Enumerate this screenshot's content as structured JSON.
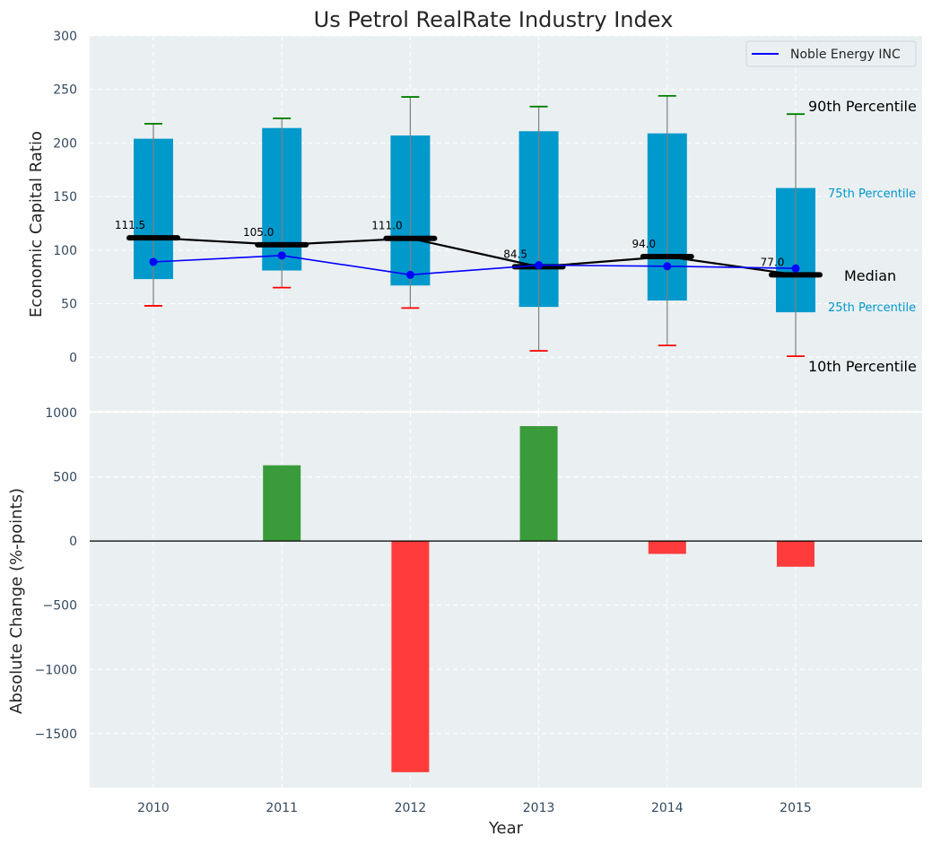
{
  "chart_data": [
    {
      "type": "box",
      "title": "Us Petrol RealRate Industry Index",
      "xlabel": "",
      "ylabel": "Economic Capital Ratio",
      "ylim": [
        -50,
        300
      ],
      "yticks": [
        "300",
        "250",
        "200",
        "150",
        "100",
        "50",
        "0"
      ],
      "ytick_values": [
        300,
        250,
        200,
        150,
        100,
        50,
        0
      ],
      "grid": true,
      "categories": [
        "2010",
        "2011",
        "2012",
        "2013",
        "2014",
        "2015"
      ],
      "p10": [
        48,
        65,
        46,
        6,
        11,
        1
      ],
      "p25": [
        73,
        81,
        67,
        47,
        53,
        42
      ],
      "median": [
        111.5,
        105.0,
        111.0,
        84.5,
        94.0,
        77.0
      ],
      "median_labels": [
        "111.5",
        "105.0",
        "111.0",
        "84.5",
        "94.0",
        "77.0"
      ],
      "p75": [
        204,
        214,
        207,
        211,
        209,
        158
      ],
      "p90": [
        218,
        223,
        243,
        234,
        244,
        227
      ],
      "series": [
        {
          "name": "Noble Energy INC",
          "values": [
            89,
            95,
            77,
            86,
            85,
            83
          ],
          "color": "#0000ff"
        }
      ],
      "legend": {
        "label": "Noble Energy INC",
        "position": "top-right"
      },
      "annotations": {
        "p90": "90th Percentile",
        "p75": "75th Percentile",
        "median": "Median",
        "p25": "25th Percentile",
        "p10": "10th Percentile"
      },
      "colors": {
        "box": "#0099cc",
        "p90_cap": "#008000",
        "p10_cap": "#ff0000",
        "median": "#000000",
        "whisker": "#808080",
        "plot_bg": "#eaeff1",
        "label_blue": "#0099cc"
      }
    },
    {
      "type": "bar",
      "xlabel": "Year",
      "ylabel": "Absolute Change (%-points)",
      "ylim": [
        -1920,
        1000
      ],
      "yticks": [
        "1000",
        "500",
        "0",
        "−500",
        "−1000",
        "−1500"
      ],
      "ytick_values": [
        1000,
        500,
        0,
        -500,
        -1000,
        -1500
      ],
      "categories": [
        "2010",
        "2011",
        "2012",
        "2013",
        "2014",
        "2015"
      ],
      "values": [
        0,
        590,
        -1800,
        895,
        -100,
        -200
      ],
      "colors": {
        "positive": "#3a9b3a",
        "negative": "#ff3b3b"
      }
    }
  ]
}
